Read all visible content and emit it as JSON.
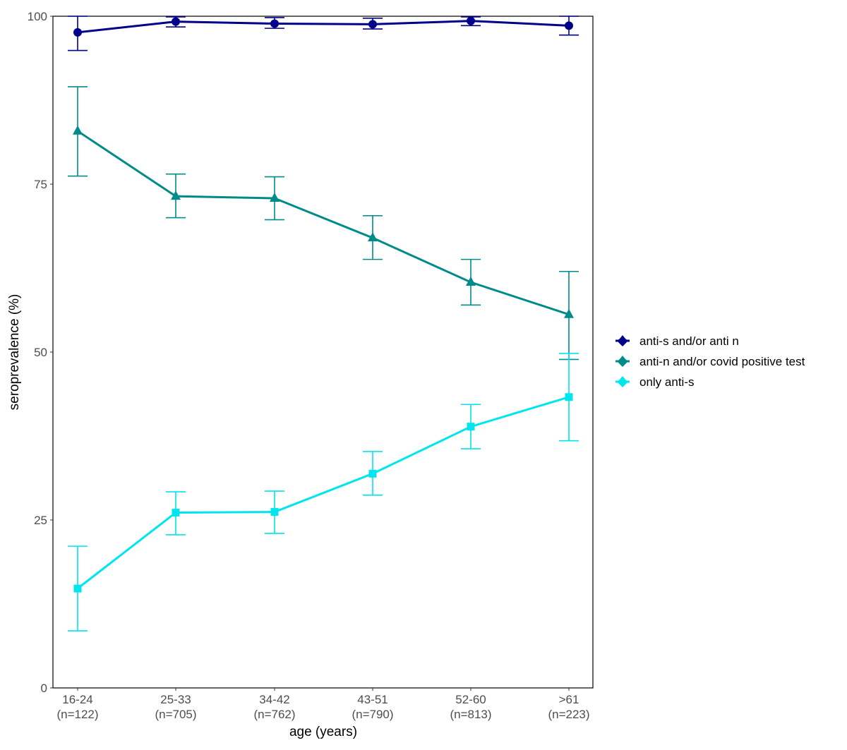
{
  "chart_data": {
    "type": "line",
    "title": "",
    "xlabel": "age (years)",
    "ylabel": "seroprevalence (%)",
    "ylim": [
      0,
      100
    ],
    "yticks": [
      0,
      25,
      50,
      75,
      100
    ],
    "grid": false,
    "legend_position": "right",
    "categories": [
      "16-24\n(n=122)",
      "25-33\n(n=705)",
      "34-42\n(n=762)",
      "43-51\n(n=790)",
      "52-60\n(n=813)",
      ">61\n(n=223)"
    ],
    "category_labels": [
      {
        "age": "16-24",
        "n": "(n=122)"
      },
      {
        "age": "25-33",
        "n": "(n=705)"
      },
      {
        "age": "34-42",
        "n": "(n=762)"
      },
      {
        "age": "43-51",
        "n": "(n=790)"
      },
      {
        "age": "52-60",
        "n": "(n=813)"
      },
      {
        ">61": "",
        "age": ">61",
        "n": "(n=223)"
      }
    ],
    "series": [
      {
        "name": "anti-s and/or anti n",
        "color": "#00008B",
        "marker": "circle",
        "values": [
          97.6,
          99.2,
          98.9,
          98.8,
          99.3,
          98.6
        ],
        "lower": [
          94.9,
          98.4,
          98.2,
          98.1,
          98.6,
          97.2
        ],
        "upper": [
          100,
          99.9,
          99.8,
          99.7,
          99.9,
          100
        ]
      },
      {
        "name": "anti-n and/or covid positive test",
        "color": "#008B8B",
        "marker": "triangle",
        "values": [
          82.9,
          73.2,
          72.9,
          67.0,
          60.4,
          55.6
        ],
        "lower": [
          76.2,
          70.0,
          69.7,
          63.8,
          57.0,
          48.9
        ],
        "upper": [
          89.5,
          76.5,
          76.1,
          70.3,
          63.8,
          62.0
        ]
      },
      {
        "name": "only anti-s",
        "color": "#00E5EE",
        "marker": "square",
        "values": [
          14.8,
          26.1,
          26.2,
          31.9,
          38.9,
          43.3
        ],
        "lower": [
          8.5,
          22.8,
          23.0,
          28.7,
          35.6,
          36.8
        ],
        "upper": [
          21.1,
          29.2,
          29.3,
          35.2,
          42.2,
          49.8
        ]
      }
    ]
  }
}
